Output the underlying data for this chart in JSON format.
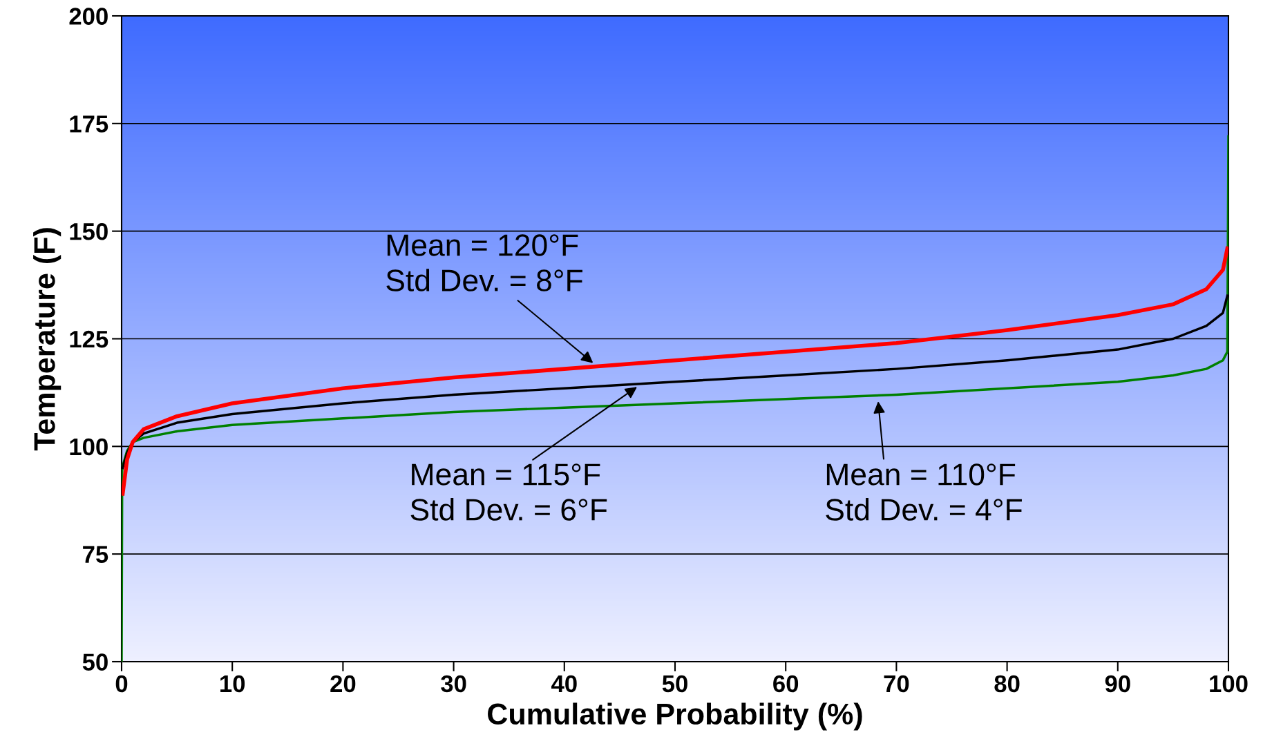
{
  "chart_data": {
    "type": "line",
    "xlabel": "Cumulative Probability (%)",
    "ylabel": "Temperature (F)",
    "xlim": [
      0,
      100
    ],
    "xticks": [
      0,
      10,
      20,
      30,
      40,
      50,
      60,
      70,
      80,
      90,
      100
    ],
    "ylim": [
      50,
      200
    ],
    "yticks": [
      50,
      75,
      100,
      125,
      150,
      175,
      200
    ],
    "grid": "y",
    "marker": "none",
    "line_style": "solid",
    "series": [
      {
        "color": "#ff0000",
        "x": [
          0.1,
          0.5,
          1,
          2,
          5,
          10,
          20,
          30,
          40,
          50,
          60,
          70,
          80,
          90,
          95,
          98,
          99.5,
          99.9
        ],
        "values": [
          89,
          97,
          101,
          104,
          107,
          110,
          113.5,
          116,
          118,
          120,
          122,
          124,
          127,
          130.5,
          133,
          136.5,
          141,
          146
        ]
      },
      {
        "color": "#000000",
        "x": [
          0.1,
          0.5,
          1,
          2,
          5,
          10,
          20,
          30,
          40,
          50,
          60,
          70,
          80,
          90,
          95,
          98,
          99.5,
          99.9
        ],
        "values": [
          95,
          98.5,
          101,
          103,
          105.5,
          107.5,
          110,
          112,
          113.5,
          115,
          116.5,
          118,
          120,
          122.5,
          125,
          128,
          131,
          135
        ]
      },
      {
        "color": "#008000",
        "x": [
          0,
          0.05,
          0.5,
          1,
          2,
          5,
          10,
          20,
          30,
          40,
          50,
          60,
          70,
          80,
          90,
          95,
          98,
          99.5,
          99.9,
          100
        ],
        "values": [
          50,
          95,
          99,
          101,
          102,
          103.5,
          105,
          106.5,
          108,
          109,
          110,
          111,
          112,
          113.5,
          115,
          116.5,
          118,
          120,
          122,
          172
        ]
      }
    ],
    "annotations": [
      {
        "text": "Mean = 120°F\nStd Dev. = 8°F",
        "x": 43,
        "y": 118.5
      },
      {
        "text": "Mean = 115°F\nStd Dev. = 6°F",
        "x": 47,
        "y": 114.6
      },
      {
        "text": "Mean = 110°F\nStd Dev. = 4°F",
        "x": 68.3,
        "y": 111.8
      }
    ]
  }
}
